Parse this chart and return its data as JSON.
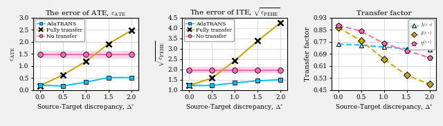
{
  "x": [
    0.0,
    0.5,
    1.0,
    1.5,
    2.0
  ],
  "plot1_title": "The error of ATE, $\\epsilon_{\\mathrm{ATE}}$",
  "plot1_ylabel": "$\\epsilon_{\\mathrm{ATE}}$",
  "plot1_adatrans": [
    0.2,
    0.17,
    0.33,
    0.52,
    0.52
  ],
  "plot1_fully": [
    0.18,
    0.63,
    1.18,
    1.92,
    2.47
  ],
  "plot1_notransfer": [
    1.47,
    1.47,
    1.47,
    1.47,
    1.47
  ],
  "plot1_notransfer_band_lo": 1.3,
  "plot1_notransfer_band_hi": 1.63,
  "plot1_ylim": [
    0.0,
    3.0
  ],
  "plot1_yticks": [
    0.0,
    0.5,
    1.0,
    1.5,
    2.0,
    2.5,
    3.0
  ],
  "plot2_title": "The error of ITE, $\\sqrt{\\epsilon_{\\mathrm{PEHE}}}$",
  "plot2_ylabel": "$\\sqrt{\\epsilon_{\\mathrm{PEHE}}}$",
  "plot2_adatrans": [
    1.22,
    1.22,
    1.35,
    1.45,
    1.5
  ],
  "plot2_fully": [
    1.22,
    1.58,
    2.42,
    3.38,
    4.25
  ],
  "plot2_notransfer": [
    1.97,
    1.97,
    1.97,
    1.97,
    1.97
  ],
  "plot2_notransfer_band_lo": 1.82,
  "plot2_notransfer_band_hi": 2.12,
  "plot2_ylim": [
    1.0,
    4.5
  ],
  "plot2_yticks": [
    1.0,
    1.5,
    2.0,
    2.5,
    3.0,
    3.5,
    4.0,
    4.5
  ],
  "plot3_title": "Transfer factor",
  "plot3_ylabel": "Transfer factor",
  "plot3_lambda": [
    0.755,
    0.748,
    0.735,
    0.725,
    0.72
  ],
  "plot3_delta": [
    0.865,
    0.778,
    0.655,
    0.548,
    0.49
  ],
  "plot3_eta": [
    0.88,
    0.84,
    0.76,
    0.71,
    0.665
  ],
  "plot3_ylim": [
    0.45,
    0.93
  ],
  "plot3_yticks": [
    0.45,
    0.53,
    0.61,
    0.69,
    0.77,
    0.85,
    0.93
  ],
  "color_adatrans": "#00BFFF",
  "color_fully": "#C8A800",
  "color_notransfer": "#FF69B4",
  "color_lambda": "#00BFFF",
  "color_delta": "#C8A800",
  "color_eta": "#FF69B4",
  "xlabel": "Source-Target discrepancy, $\\Delta^s$",
  "xticks": [
    0.0,
    0.5,
    1.0,
    1.5,
    2.0
  ]
}
